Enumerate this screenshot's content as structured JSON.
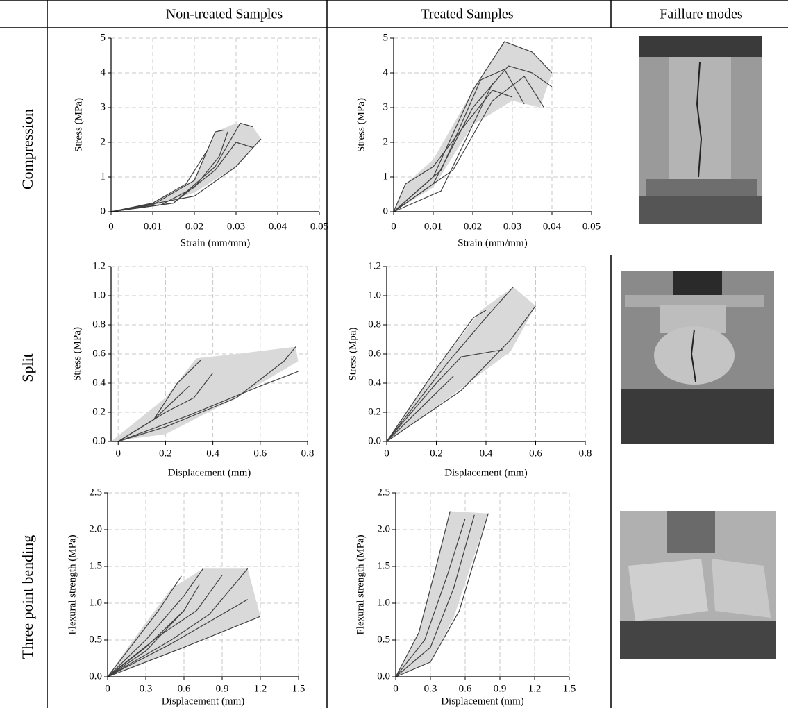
{
  "table": {
    "header": [
      "Non-treated Samples",
      "Treated Samples",
      "Faillure modes"
    ],
    "row_labels": [
      "Compression",
      "Split",
      "Three point bending"
    ]
  },
  "chart_data": [
    {
      "type": "line",
      "xlabel": "Strain (mm/mm)",
      "ylabel": "Stress (MPa)",
      "xlim": [
        0,
        0.05
      ],
      "ylim": [
        0,
        5
      ],
      "xticks": [
        0,
        0.01,
        0.02,
        0.03,
        0.04,
        0.05
      ],
      "yticks": [
        0,
        1,
        2,
        3,
        4,
        5
      ],
      "grid": true,
      "line_color": "#404040",
      "envelope": {
        "color": "#d9d9d9",
        "x": [
          0,
          0.01,
          0.02,
          0.025,
          0.03,
          0.034,
          0.036,
          0.03,
          0.02,
          0.01,
          0
        ],
        "values": [
          0,
          0.25,
          0.9,
          2.3,
          2.55,
          2.45,
          2.1,
          1.3,
          0.55,
          0.15,
          0
        ]
      },
      "series": [
        {
          "x": [
            0,
            0.01,
            0.018,
            0.023
          ],
          "values": [
            0,
            0.25,
            0.8,
            1.75
          ]
        },
        {
          "x": [
            0,
            0.01,
            0.02,
            0.025,
            0.027
          ],
          "values": [
            0,
            0.2,
            0.9,
            2.3,
            2.35
          ]
        },
        {
          "x": [
            0,
            0.012,
            0.02,
            0.026,
            0.028
          ],
          "values": [
            0,
            0.2,
            0.7,
            1.6,
            2.3
          ]
        },
        {
          "x": [
            0,
            0.015,
            0.025,
            0.03,
            0.034
          ],
          "values": [
            0,
            0.25,
            1.2,
            2.0,
            1.85
          ]
        },
        {
          "x": [
            0,
            0.015,
            0.025,
            0.031,
            0.034
          ],
          "values": [
            0,
            0.25,
            1.3,
            2.55,
            2.45
          ]
        },
        {
          "x": [
            0,
            0.02,
            0.03,
            0.036
          ],
          "values": [
            0,
            0.45,
            1.3,
            2.1
          ]
        }
      ]
    },
    {
      "type": "line",
      "xlabel": "Strain (mm/mm)",
      "ylabel": "Stress (MPa)",
      "xlim": [
        0,
        0.05
      ],
      "ylim": [
        0,
        5
      ],
      "xticks": [
        0,
        0.01,
        0.02,
        0.03,
        0.04,
        0.05
      ],
      "yticks": [
        0,
        1,
        2,
        3,
        4,
        5
      ],
      "grid": true,
      "line_color": "#404040",
      "envelope": {
        "color": "#d9d9d9",
        "x": [
          0,
          0.003,
          0.01,
          0.02,
          0.028,
          0.035,
          0.04,
          0.037,
          0.03,
          0.02,
          0.01,
          0
        ],
        "values": [
          0,
          0.8,
          1.5,
          3.5,
          4.9,
          4.6,
          4.0,
          3.0,
          3.2,
          2.5,
          0.7,
          0
        ]
      },
      "series": [
        {
          "x": [
            0,
            0.003,
            0.01,
            0.018,
            0.025,
            0.03
          ],
          "values": [
            0,
            0.8,
            1.3,
            2.5,
            3.5,
            3.3
          ]
        },
        {
          "x": [
            0,
            0.01,
            0.02,
            0.028,
            0.035,
            0.04
          ],
          "values": [
            0,
            1.0,
            3.5,
            4.9,
            4.6,
            4.0
          ]
        },
        {
          "x": [
            0,
            0.01,
            0.02,
            0.029,
            0.035,
            0.04
          ],
          "values": [
            0,
            0.8,
            3.0,
            4.2,
            4.0,
            3.6
          ]
        },
        {
          "x": [
            0,
            0.012,
            0.022,
            0.028,
            0.033
          ],
          "values": [
            0,
            1.2,
            3.8,
            4.1,
            3.1
          ]
        },
        {
          "x": [
            0,
            0.015,
            0.025,
            0.033,
            0.038
          ],
          "values": [
            0,
            1.2,
            3.2,
            3.9,
            3.0
          ]
        },
        {
          "x": [
            0,
            0.012,
            0.02,
            0.025
          ],
          "values": [
            0,
            0.6,
            2.5,
            3.7
          ]
        }
      ]
    },
    {
      "type": "line",
      "xlabel": "Displacement (mm)",
      "ylabel": "Stress (MPa)",
      "xlim": [
        -0.03,
        0.8
      ],
      "ylim": [
        0,
        1.2
      ],
      "xticks": [
        0,
        0.2,
        0.4,
        0.6,
        0.8
      ],
      "yticks": [
        {
          "value": 0,
          "label": "0.0"
        },
        0.2,
        0.4,
        0.6,
        0.8,
        {
          "value": 1,
          "label": "1.0"
        },
        1.2
      ],
      "grid": true,
      "line_color": "#404040",
      "envelope": {
        "color": "#d9d9d9",
        "x": [
          -0.03,
          0.2,
          0.33,
          0.5,
          0.75,
          0.76,
          0.5,
          0.2,
          -0.03
        ],
        "values": [
          0,
          0.3,
          0.57,
          0.6,
          0.65,
          0.55,
          0.3,
          0.05,
          0
        ]
      },
      "series": [
        {
          "x": [
            0,
            0.15,
            0.25,
            0.35
          ],
          "values": [
            0,
            0.15,
            0.4,
            0.56
          ]
        },
        {
          "x": [
            0,
            0.15,
            0.3
          ],
          "values": [
            0,
            0.15,
            0.38
          ]
        },
        {
          "x": [
            0,
            0.2,
            0.32,
            0.4
          ],
          "values": [
            0,
            0.2,
            0.3,
            0.47
          ]
        },
        {
          "x": [
            0,
            0.2,
            0.5,
            0.7,
            0.75
          ],
          "values": [
            0,
            0.1,
            0.3,
            0.55,
            0.65
          ]
        },
        {
          "x": [
            0,
            0.3,
            0.6,
            0.76
          ],
          "values": [
            0,
            0.18,
            0.38,
            0.48
          ]
        }
      ]
    },
    {
      "type": "line",
      "xlabel": "Displacement (mm)",
      "ylabel": "Stress (Mpa)",
      "xlim": [
        0,
        0.8
      ],
      "ylim": [
        0,
        1.2
      ],
      "xticks": [
        0,
        0.2,
        0.4,
        0.6,
        0.8
      ],
      "yticks": [
        {
          "value": 0,
          "label": "0.0"
        },
        0.2,
        0.4,
        0.6,
        0.8,
        {
          "value": 1,
          "label": "1.0"
        },
        1.2
      ],
      "grid": true,
      "line_color": "#404040",
      "envelope": {
        "color": "#d9d9d9",
        "x": [
          0,
          0.2,
          0.38,
          0.51,
          0.6,
          0.5,
          0.25,
          0
        ],
        "values": [
          0,
          0.5,
          0.9,
          1.06,
          0.93,
          0.62,
          0.3,
          0
        ]
      },
      "series": [
        {
          "x": [
            0,
            0.2,
            0.35,
            0.4
          ],
          "values": [
            0,
            0.5,
            0.85,
            0.9
          ]
        },
        {
          "x": [
            0,
            0.25,
            0.4,
            0.51
          ],
          "values": [
            0,
            0.55,
            0.85,
            1.06
          ]
        },
        {
          "x": [
            0,
            0.2,
            0.3,
            0.47
          ],
          "values": [
            0,
            0.4,
            0.58,
            0.63
          ]
        },
        {
          "x": [
            0,
            0.27
          ],
          "values": [
            0,
            0.45
          ]
        },
        {
          "x": [
            0,
            0.3,
            0.5,
            0.6
          ],
          "values": [
            0,
            0.35,
            0.7,
            0.93
          ]
        }
      ]
    },
    {
      "type": "line",
      "xlabel": "Displacement (mm)",
      "ylabel": "Flexural strength (MPa)",
      "xlim": [
        0,
        1.5
      ],
      "ylim": [
        0,
        2.5
      ],
      "xticks": [
        0,
        0.3,
        0.6,
        0.9,
        1.2,
        1.5
      ],
      "yticks": [
        {
          "value": 0,
          "label": "0.0"
        },
        0.5,
        {
          "value": 1,
          "label": "1.0"
        },
        1.5,
        {
          "value": 2,
          "label": "2.0"
        },
        2.5
      ],
      "grid": true,
      "line_color": "#404040",
      "envelope": {
        "color": "#d9d9d9",
        "x": [
          0,
          0.2,
          0.5,
          0.75,
          1.1,
          1.2,
          0.6,
          0.2,
          0
        ],
        "values": [
          0,
          0.5,
          1.2,
          1.47,
          1.47,
          0.82,
          0.4,
          0.12,
          0
        ]
      },
      "series": [
        {
          "x": [
            0,
            0.2,
            0.4,
            0.58
          ],
          "values": [
            0,
            0.45,
            0.9,
            1.37
          ]
        },
        {
          "x": [
            0,
            0.3,
            0.6,
            0.75
          ],
          "values": [
            0,
            0.5,
            1.1,
            1.47
          ]
        },
        {
          "x": [
            0,
            0.3,
            0.6,
            0.72
          ],
          "values": [
            0,
            0.4,
            0.9,
            1.25
          ]
        },
        {
          "x": [
            0,
            0.4,
            0.7,
            0.9
          ],
          "values": [
            0,
            0.55,
            0.9,
            1.38
          ]
        },
        {
          "x": [
            0,
            0.3,
            0.6
          ],
          "values": [
            0,
            0.35,
            0.9
          ]
        },
        {
          "x": [
            0,
            0.5,
            0.8,
            1.1
          ],
          "values": [
            0,
            0.5,
            0.85,
            1.47
          ]
        },
        {
          "x": [
            0,
            0.5,
            0.9,
            1.1
          ],
          "values": [
            0,
            0.45,
            0.85,
            1.05
          ]
        },
        {
          "x": [
            0,
            0.6,
            1.2
          ],
          "values": [
            0,
            0.4,
            0.82
          ]
        }
      ]
    },
    {
      "type": "line",
      "xlabel": "Displacement (mm)",
      "ylabel": "Flexural strength (MPa)",
      "xlim": [
        0,
        1.5
      ],
      "ylim": [
        0,
        2.5
      ],
      "xticks": [
        0,
        0.3,
        0.6,
        0.9,
        1.2,
        1.5
      ],
      "yticks": [
        {
          "value": 0,
          "label": "0.0"
        },
        0.5,
        {
          "value": 1,
          "label": "1.0"
        },
        1.5,
        {
          "value": 2,
          "label": "2.0"
        },
        2.5
      ],
      "grid": true,
      "line_color": "#404040",
      "envelope": {
        "color": "#d9d9d9",
        "x": [
          0,
          0.2,
          0.47,
          0.8,
          0.5,
          0.3,
          0
        ],
        "values": [
          0,
          0.6,
          2.25,
          2.22,
          0.8,
          0.2,
          0
        ]
      },
      "series": [
        {
          "x": [
            0,
            0.2,
            0.35,
            0.47
          ],
          "values": [
            0,
            0.6,
            1.5,
            2.25
          ]
        },
        {
          "x": [
            0,
            0.25,
            0.45,
            0.6
          ],
          "values": [
            0,
            0.5,
            1.4,
            2.15
          ]
        },
        {
          "x": [
            0,
            0.3,
            0.5,
            0.68
          ],
          "values": [
            0,
            0.4,
            1.2,
            2.2
          ]
        },
        {
          "x": [
            0,
            0.3,
            0.55,
            0.8
          ],
          "values": [
            0,
            0.2,
            0.9,
            2.22
          ]
        }
      ]
    }
  ]
}
